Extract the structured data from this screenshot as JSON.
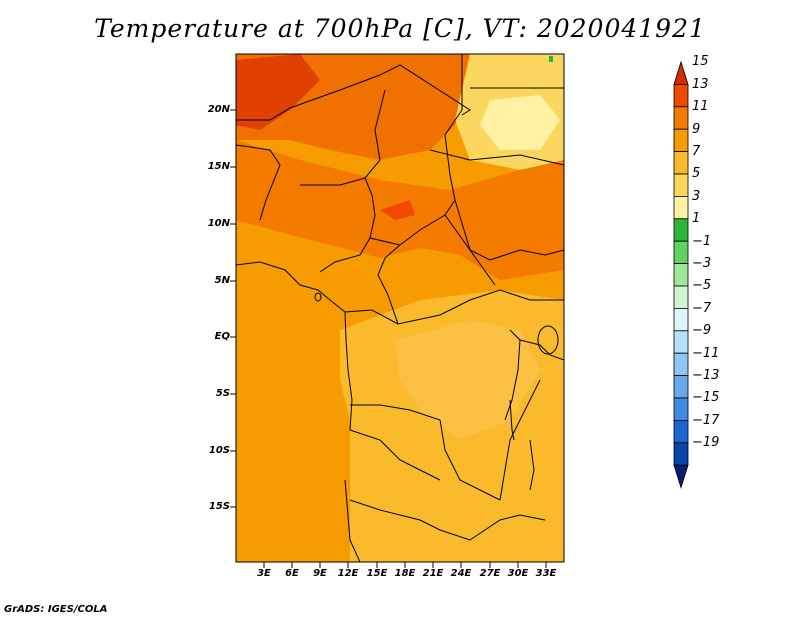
{
  "title": "Temperature at 700hPa [C], VT: 2020041921",
  "credit": "GrADS: IGES/COLA",
  "map": {
    "lat_labels": [
      "20N",
      "15N",
      "10N",
      "5N",
      "EQ",
      "5S",
      "10S",
      "15S"
    ],
    "lon_labels": [
      "3E",
      "6E",
      "9E",
      "12E",
      "15E",
      "18E",
      "21E",
      "24E",
      "27E",
      "30E",
      "33E"
    ],
    "lon_range": [
      0,
      35
    ],
    "lat_range": [
      -20,
      25
    ]
  },
  "colorbar": {
    "levels": [
      "15",
      "13",
      "11",
      "9",
      "7",
      "5",
      "3",
      "1",
      "−1",
      "−3",
      "−5",
      "−7",
      "−9",
      "−11",
      "−13",
      "−15",
      "−17",
      "−19"
    ],
    "colors": [
      "#d72a00",
      "#f04a00",
      "#f57a00",
      "#f79c00",
      "#faba2b",
      "#fcd760",
      "#fff2a3",
      "#2fb43a",
      "#5fd25f",
      "#9ee69a",
      "#d2f4cf",
      "#e1f5fc",
      "#b4e0f9",
      "#8dc6f3",
      "#65a9ec",
      "#3f8ce3",
      "#1c66cf",
      "#0a45a8",
      "#051f78"
    ]
  }
}
